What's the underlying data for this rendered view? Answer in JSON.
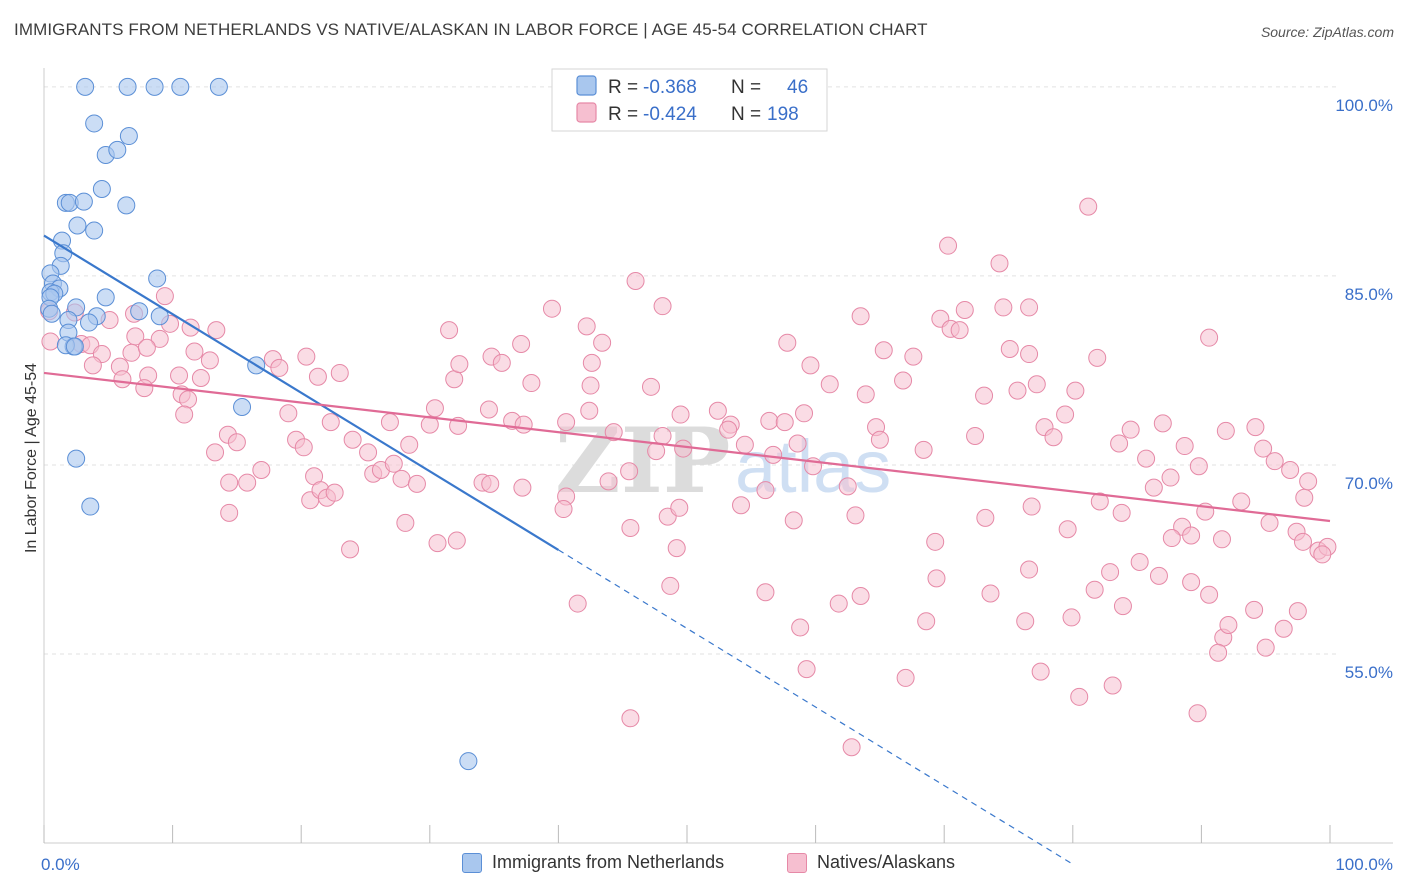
{
  "header": {
    "title": "IMMIGRANTS FROM NETHERLANDS VS NATIVE/ALASKAN IN LABOR FORCE | AGE 45-54 CORRELATION CHART",
    "source": "Source: ZipAtlas.com"
  },
  "watermark": {
    "text_bold": "ZIP",
    "text_light": "atlas"
  },
  "legend_top": {
    "rows": [
      {
        "r_label": "R =",
        "r_value": "-0.368",
        "n_label": "N =",
        "n_value": "46"
      },
      {
        "r_label": "R =",
        "r_value": "-0.424",
        "n_label": "N =",
        "n_value": "198"
      }
    ]
  },
  "colors": {
    "blue_fill": "#a9c7ee",
    "blue_stroke": "#5b8fd6",
    "blue_line": "#3a78cc",
    "pink_fill": "#f6bfd0",
    "pink_stroke": "#e689a7",
    "pink_line": "#e06b96",
    "value_blue": "#3a6fc9",
    "grid": "#e2e2e2"
  },
  "chart_data": {
    "type": "scatter",
    "ylabel": "In Labor Force | Age 45-54",
    "x_tick_labels": [
      "0.0%",
      "100.0%"
    ],
    "y_tick_labels": [
      "100.0%",
      "85.0%",
      "70.0%",
      "55.0%"
    ],
    "y_ticks": [
      100,
      85,
      70,
      55
    ],
    "xlim": [
      0,
      100
    ],
    "ylim": [
      40,
      101.5
    ],
    "grid": true,
    "legend_placement": "bottom",
    "series": [
      {
        "name": "Immigrants from Netherlands",
        "color": "blue",
        "regression": {
          "slope": -0.6235,
          "intercept": 88.2,
          "solid_to_x": 40.0,
          "dashed_to_x": 80.0
        },
        "points": [
          [
            3.2,
            100
          ],
          [
            6.5,
            100
          ],
          [
            8.6,
            100
          ],
          [
            10.6,
            100
          ],
          [
            13.6,
            100
          ],
          [
            3.9,
            97.1
          ],
          [
            6.6,
            96.1
          ],
          [
            4.8,
            94.6
          ],
          [
            5.7,
            95.0
          ],
          [
            4.5,
            91.9
          ],
          [
            6.4,
            90.6
          ],
          [
            1.7,
            90.8
          ],
          [
            2.0,
            90.8
          ],
          [
            3.1,
            90.9
          ],
          [
            2.6,
            89.0
          ],
          [
            3.9,
            88.6
          ],
          [
            1.4,
            87.8
          ],
          [
            1.5,
            86.8
          ],
          [
            1.3,
            85.8
          ],
          [
            0.5,
            85.2
          ],
          [
            0.7,
            84.4
          ],
          [
            8.8,
            84.8
          ],
          [
            1.2,
            84.0
          ],
          [
            0.5,
            83.7
          ],
          [
            0.8,
            83.6
          ],
          [
            0.5,
            83.3
          ],
          [
            4.8,
            83.3
          ],
          [
            0.4,
            82.4
          ],
          [
            2.5,
            82.5
          ],
          [
            0.6,
            82.0
          ],
          [
            7.4,
            82.2
          ],
          [
            1.9,
            81.5
          ],
          [
            4.1,
            81.8
          ],
          [
            3.5,
            81.3
          ],
          [
            1.9,
            80.5
          ],
          [
            9.0,
            81.8
          ],
          [
            2.3,
            79.4
          ],
          [
            1.7,
            79.5
          ],
          [
            2.4,
            79.4
          ],
          [
            16.5,
            77.9
          ],
          [
            15.4,
            74.6
          ],
          [
            2.5,
            70.5
          ],
          [
            3.6,
            66.7
          ],
          [
            33.0,
            46.5
          ]
        ]
      },
      {
        "name": "Natives/Alaskans",
        "color": "pink",
        "regression": {
          "slope": -0.1175,
          "intercept": 77.3
        },
        "points": [
          [
            0.4,
            82.2
          ],
          [
            2.4,
            82.1
          ],
          [
            5.1,
            81.5
          ],
          [
            7.0,
            82.0
          ],
          [
            9.4,
            83.4
          ],
          [
            9.8,
            81.2
          ],
          [
            11.4,
            80.9
          ],
          [
            13.4,
            80.7
          ],
          [
            0.5,
            79.8
          ],
          [
            2.9,
            79.6
          ],
          [
            3.6,
            79.5
          ],
          [
            7.1,
            80.2
          ],
          [
            9.0,
            80.0
          ],
          [
            4.5,
            78.8
          ],
          [
            6.8,
            78.9
          ],
          [
            8.0,
            79.3
          ],
          [
            11.7,
            79.0
          ],
          [
            12.9,
            78.3
          ],
          [
            3.8,
            77.9
          ],
          [
            5.9,
            77.8
          ],
          [
            8.1,
            77.1
          ],
          [
            10.5,
            77.1
          ],
          [
            12.2,
            76.9
          ],
          [
            6.1,
            76.8
          ],
          [
            7.8,
            76.1
          ],
          [
            10.7,
            75.6
          ],
          [
            11.2,
            75.2
          ],
          [
            17.8,
            78.4
          ],
          [
            20.4,
            78.6
          ],
          [
            18.3,
            77.7
          ],
          [
            21.3,
            77.0
          ],
          [
            23.0,
            77.3
          ],
          [
            31.5,
            80.7
          ],
          [
            31.9,
            76.8
          ],
          [
            32.3,
            78.0
          ],
          [
            34.8,
            78.6
          ],
          [
            35.6,
            78.1
          ],
          [
            37.1,
            79.6
          ],
          [
            39.5,
            82.4
          ],
          [
            37.9,
            76.5
          ],
          [
            42.2,
            81.0
          ],
          [
            43.4,
            79.7
          ],
          [
            42.5,
            76.3
          ],
          [
            46.0,
            84.6
          ],
          [
            48.1,
            82.6
          ],
          [
            47.2,
            76.2
          ],
          [
            42.6,
            78.1
          ],
          [
            10.9,
            74.0
          ],
          [
            14.3,
            72.4
          ],
          [
            13.3,
            71.0
          ],
          [
            15.0,
            71.8
          ],
          [
            19.0,
            74.1
          ],
          [
            19.6,
            72.0
          ],
          [
            20.2,
            71.4
          ],
          [
            22.3,
            73.4
          ],
          [
            24.0,
            72.0
          ],
          [
            25.2,
            71.0
          ],
          [
            26.9,
            73.4
          ],
          [
            28.4,
            71.6
          ],
          [
            30.4,
            74.5
          ],
          [
            30.0,
            73.2
          ],
          [
            32.2,
            73.1
          ],
          [
            34.6,
            74.4
          ],
          [
            36.4,
            73.5
          ],
          [
            37.3,
            73.2
          ],
          [
            40.6,
            73.4
          ],
          [
            42.4,
            74.3
          ],
          [
            44.3,
            72.6
          ],
          [
            47.6,
            71.1
          ],
          [
            48.1,
            72.3
          ],
          [
            49.5,
            74.0
          ],
          [
            49.7,
            71.3
          ],
          [
            53.4,
            73.2
          ],
          [
            52.4,
            74.3
          ],
          [
            53.2,
            72.8
          ],
          [
            54.5,
            71.6
          ],
          [
            56.4,
            73.5
          ],
          [
            56.7,
            70.8
          ],
          [
            57.6,
            73.4
          ],
          [
            58.6,
            71.7
          ],
          [
            59.1,
            74.1
          ],
          [
            57.8,
            79.7
          ],
          [
            59.6,
            77.9
          ],
          [
            61.1,
            76.4
          ],
          [
            63.5,
            81.8
          ],
          [
            63.9,
            75.6
          ],
          [
            64.7,
            73.0
          ],
          [
            65.0,
            72.0
          ],
          [
            65.3,
            79.1
          ],
          [
            66.8,
            76.7
          ],
          [
            67.6,
            78.6
          ],
          [
            68.4,
            71.2
          ],
          [
            70.3,
            87.4
          ],
          [
            69.7,
            81.6
          ],
          [
            70.5,
            80.8
          ],
          [
            71.2,
            80.7
          ],
          [
            71.6,
            82.3
          ],
          [
            72.4,
            72.3
          ],
          [
            73.1,
            75.5
          ],
          [
            74.3,
            86.0
          ],
          [
            74.6,
            82.5
          ],
          [
            75.1,
            79.2
          ],
          [
            75.7,
            75.9
          ],
          [
            76.6,
            82.5
          ],
          [
            76.6,
            78.8
          ],
          [
            77.2,
            76.4
          ],
          [
            77.8,
            73.0
          ],
          [
            78.5,
            72.2
          ],
          [
            79.4,
            74.0
          ],
          [
            80.2,
            75.9
          ],
          [
            81.2,
            90.5
          ],
          [
            81.9,
            78.5
          ],
          [
            83.6,
            71.7
          ],
          [
            84.5,
            72.8
          ],
          [
            85.7,
            70.5
          ],
          [
            87.0,
            73.3
          ],
          [
            88.7,
            71.5
          ],
          [
            89.8,
            69.9
          ],
          [
            90.6,
            80.1
          ],
          [
            91.9,
            72.7
          ],
          [
            94.2,
            73.0
          ],
          [
            94.8,
            71.3
          ],
          [
            95.7,
            70.3
          ],
          [
            96.9,
            69.6
          ],
          [
            98.0,
            67.4
          ],
          [
            98.3,
            68.7
          ],
          [
            99.1,
            63.2
          ],
          [
            99.8,
            63.5
          ],
          [
            14.4,
            68.6
          ],
          [
            14.4,
            66.2
          ],
          [
            15.8,
            68.6
          ],
          [
            16.9,
            69.6
          ],
          [
            20.7,
            67.2
          ],
          [
            21.0,
            69.1
          ],
          [
            21.5,
            68.0
          ],
          [
            22.0,
            67.4
          ],
          [
            22.6,
            67.8
          ],
          [
            23.8,
            63.3
          ],
          [
            25.6,
            69.3
          ],
          [
            26.2,
            69.6
          ],
          [
            27.2,
            70.1
          ],
          [
            27.8,
            68.9
          ],
          [
            28.1,
            65.4
          ],
          [
            29.0,
            68.5
          ],
          [
            30.6,
            63.8
          ],
          [
            32.1,
            64.0
          ],
          [
            34.1,
            68.6
          ],
          [
            34.7,
            68.5
          ],
          [
            37.2,
            68.2
          ],
          [
            40.6,
            67.5
          ],
          [
            43.9,
            68.7
          ],
          [
            45.5,
            69.5
          ],
          [
            48.5,
            65.9
          ],
          [
            49.4,
            66.6
          ],
          [
            54.2,
            66.8
          ],
          [
            56.1,
            68.0
          ],
          [
            58.3,
            65.6
          ],
          [
            59.8,
            69.9
          ],
          [
            63.1,
            66.0
          ],
          [
            62.5,
            68.3
          ],
          [
            69.3,
            63.9
          ],
          [
            73.2,
            65.8
          ],
          [
            76.8,
            66.7
          ],
          [
            79.6,
            64.9
          ],
          [
            82.1,
            67.1
          ],
          [
            83.8,
            66.2
          ],
          [
            86.3,
            68.2
          ],
          [
            87.6,
            69.0
          ],
          [
            88.5,
            65.1
          ],
          [
            89.2,
            64.4
          ],
          [
            90.3,
            66.3
          ],
          [
            91.6,
            64.1
          ],
          [
            93.1,
            67.1
          ],
          [
            95.3,
            65.4
          ],
          [
            97.4,
            64.7
          ],
          [
            97.9,
            63.9
          ],
          [
            99.4,
            62.9
          ],
          [
            40.4,
            66.5
          ],
          [
            45.6,
            65.0
          ],
          [
            41.5,
            59.0
          ],
          [
            48.7,
            60.4
          ],
          [
            49.2,
            63.4
          ],
          [
            56.1,
            59.9
          ],
          [
            58.8,
            57.1
          ],
          [
            61.8,
            59.0
          ],
          [
            63.5,
            59.6
          ],
          [
            68.6,
            57.6
          ],
          [
            69.4,
            61.0
          ],
          [
            73.6,
            59.8
          ],
          [
            76.3,
            57.6
          ],
          [
            76.6,
            61.7
          ],
          [
            79.9,
            57.9
          ],
          [
            81.7,
            60.1
          ],
          [
            82.9,
            61.5
          ],
          [
            83.9,
            58.8
          ],
          [
            85.2,
            62.3
          ],
          [
            86.7,
            61.2
          ],
          [
            87.7,
            64.2
          ],
          [
            89.2,
            60.7
          ],
          [
            90.6,
            59.7
          ],
          [
            91.7,
            56.3
          ],
          [
            92.1,
            57.3
          ],
          [
            94.1,
            58.5
          ],
          [
            95.0,
            55.5
          ],
          [
            96.4,
            57.0
          ],
          [
            97.5,
            58.4
          ],
          [
            45.6,
            49.9
          ],
          [
            59.3,
            53.8
          ],
          [
            62.8,
            47.6
          ],
          [
            67.0,
            53.1
          ],
          [
            77.5,
            53.6
          ],
          [
            80.5,
            51.6
          ],
          [
            83.1,
            52.5
          ],
          [
            89.7,
            50.3
          ],
          [
            91.3,
            55.1
          ]
        ]
      }
    ]
  },
  "legend_bottom": {
    "items": [
      {
        "label": "Immigrants from Netherlands"
      },
      {
        "label": "Natives/Alaskans"
      }
    ]
  }
}
